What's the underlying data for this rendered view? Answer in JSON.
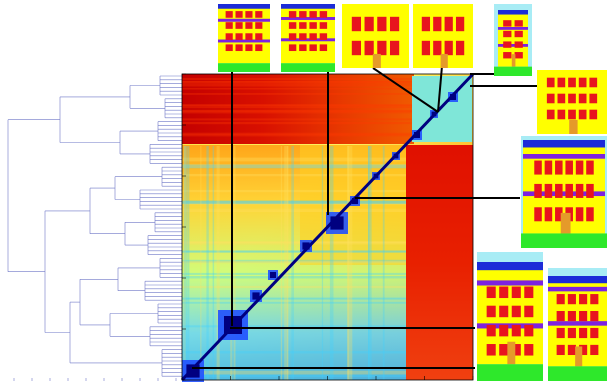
{
  "colors": {
    "facade_wall": "#ffff00",
    "window": "#e8141e",
    "floor_band": "#7d22e0",
    "roof_blue": "#1c2bd8",
    "sky": "#a8ecf5",
    "ground": "#2ee82b",
    "door": "#e59a2a",
    "dendrogram_line": "#6f78c8",
    "link_line": "#000000",
    "matrix_high": "#c80000",
    "matrix_mid": "#ffff40",
    "matrix_low": "#40c8ff",
    "matrix_diag": "#000080"
  },
  "figure": {
    "components": [
      "dendrogram",
      "similarity-matrix",
      "facade-thumbnails"
    ],
    "thumbnail_count": 9,
    "link_count": 9
  }
}
